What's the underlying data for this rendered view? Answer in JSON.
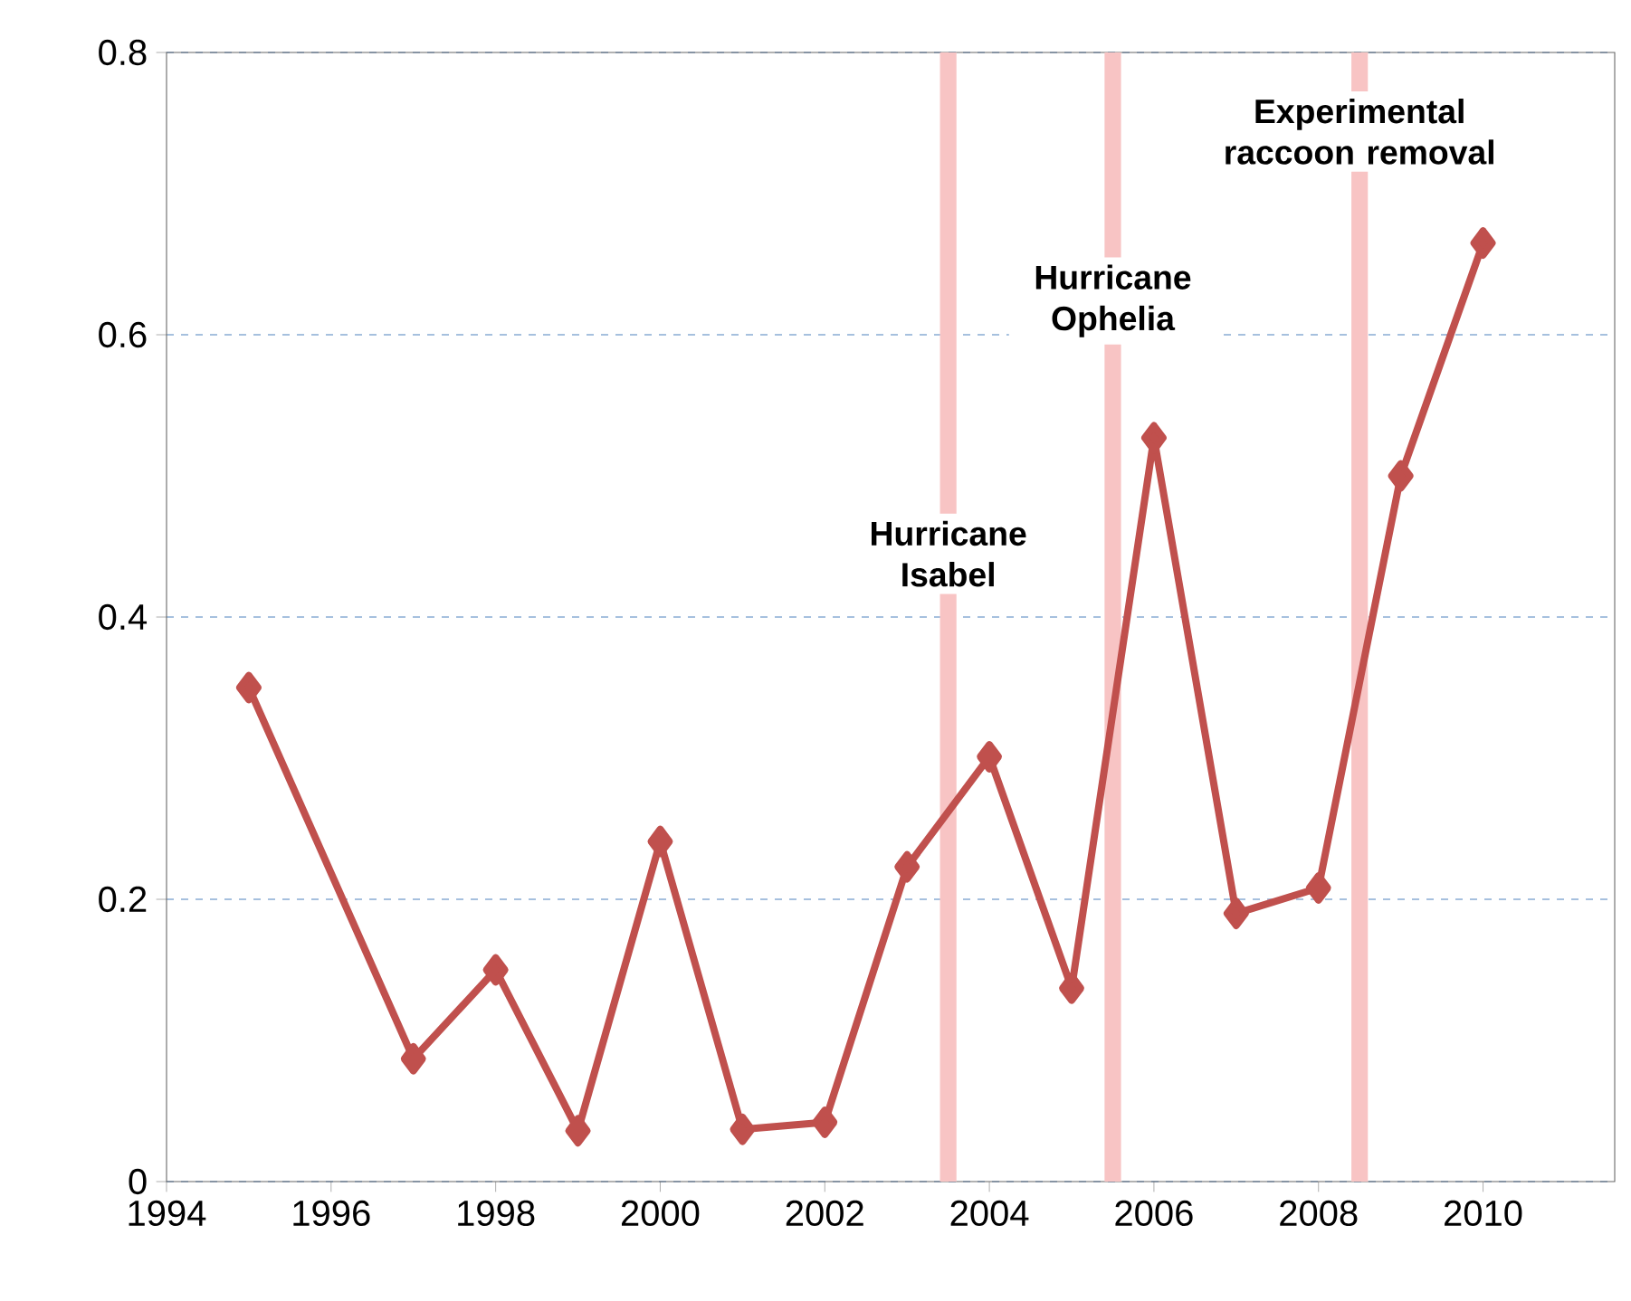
{
  "chart_data": {
    "type": "line",
    "x": [
      1995,
      1997,
      1998,
      1999,
      2000,
      2001,
      2002,
      2003,
      2004,
      2005,
      2006,
      2007,
      2008,
      2009,
      2010
    ],
    "series": [
      {
        "color": "#c0504d",
        "values": [
          0.35,
          0.087,
          0.15,
          0.036,
          0.241,
          0.037,
          0.042,
          0.223,
          0.301,
          0.137,
          0.527,
          0.19,
          0.208,
          0.5,
          0.665
        ]
      }
    ],
    "xlim": [
      1994,
      2011.6
    ],
    "xticks": [
      1994,
      1996,
      1998,
      2000,
      2002,
      2004,
      2006,
      2008,
      2010
    ],
    "ylim": [
      0,
      0.8
    ],
    "yticks": [
      0,
      0.2,
      0.4,
      0.6,
      0.8
    ],
    "grid": "y",
    "marker": "diamond",
    "line_style": "solid",
    "bands": [
      {
        "axis": "x",
        "from": 2003.4,
        "to": 2003.6,
        "label": "Hurricane Isabel",
        "color": "#f8c4c4"
      },
      {
        "axis": "x",
        "from": 2005.4,
        "to": 2005.6,
        "label": "Hurricane Ophelia",
        "color": "#f8c4c4"
      },
      {
        "axis": "x",
        "from": 2008.4,
        "to": 2008.6,
        "label": "Experimental raccoon removal",
        "color": "#f8c4c4"
      }
    ]
  }
}
